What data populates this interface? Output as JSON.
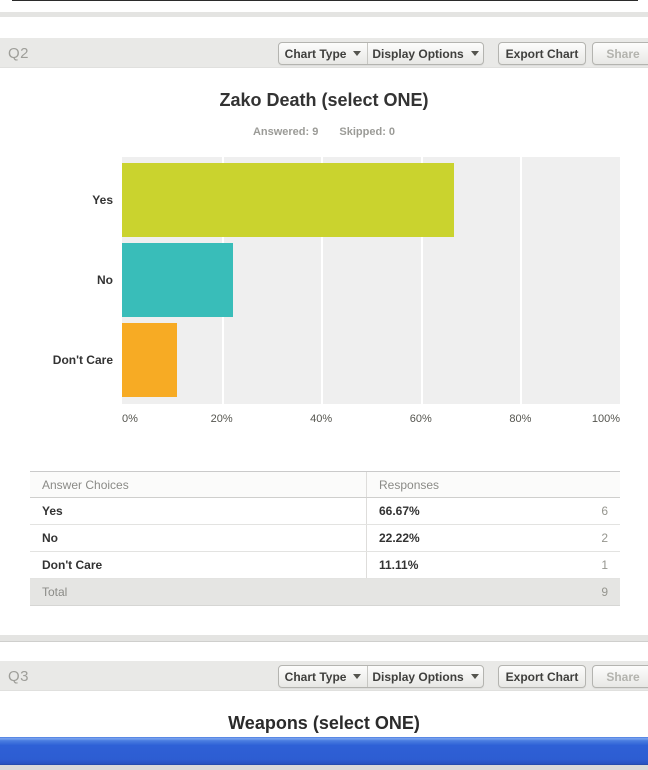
{
  "q2": {
    "label": "Q2"
  },
  "q3": {
    "label": "Q3",
    "chart_title": "Weapons (select ONE)"
  },
  "toolbar": {
    "chart_type_label": "Chart Type",
    "display_options_label": "Display Options",
    "export_chart_label": "Export Chart",
    "share_label": "Share"
  },
  "subtitle": {
    "answered": "Answered: 9",
    "skipped": "Skipped: 0"
  },
  "chart_data": {
    "type": "bar",
    "orientation": "horizontal",
    "title": "Zako Death (select ONE)",
    "categories": [
      "Yes",
      "No",
      "Don't Care"
    ],
    "values": [
      66.67,
      22.22,
      11.11
    ],
    "series_colors": [
      "#cad32e",
      "#39bdb9",
      "#f7ab24"
    ],
    "x_ticks": [
      "0%",
      "20%",
      "40%",
      "60%",
      "80%",
      "100%"
    ],
    "xlim": [
      0,
      100
    ],
    "grid": true,
    "plot_bg": "#efefef",
    "answered": 9,
    "skipped": 0
  },
  "table": {
    "headers": [
      "Answer Choices",
      "Responses"
    ],
    "rows": [
      {
        "choice": "Yes",
        "percent": "66.67%",
        "count": "6"
      },
      {
        "choice": "No",
        "percent": "22.22%",
        "count": "2"
      },
      {
        "choice": "Don't Care",
        "percent": "11.11%",
        "count": "1"
      }
    ],
    "total": {
      "label": "Total",
      "count": "9"
    }
  }
}
